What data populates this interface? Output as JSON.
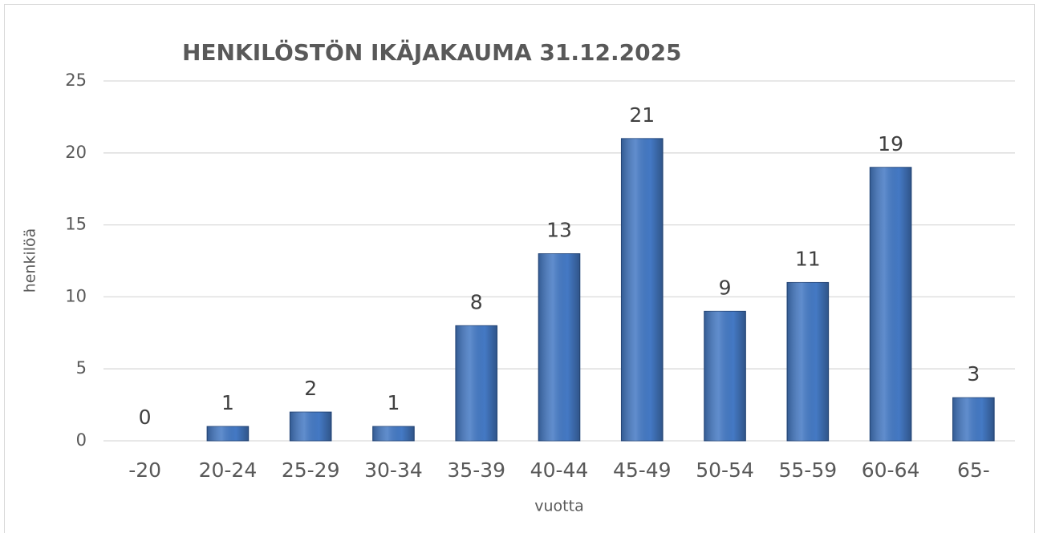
{
  "chart_data": {
    "type": "bar",
    "title": "HENKILÖSTÖN IKÄJAKAUMA 31.12.2025",
    "x_label": "vuotta",
    "y_label": "henkilöä",
    "categories": [
      "-20",
      "20-24",
      "25-29",
      "30-34",
      "35-39",
      "40-44",
      "45-49",
      "50-54",
      "55-59",
      "60-64",
      "65-"
    ],
    "values": [
      0,
      1,
      2,
      1,
      8,
      13,
      21,
      9,
      11,
      19,
      3
    ],
    "color": "#4479c4",
    "ylim": [
      0,
      25
    ],
    "yticks": [
      0,
      5,
      10,
      15,
      20,
      25
    ],
    "grid": true
  }
}
